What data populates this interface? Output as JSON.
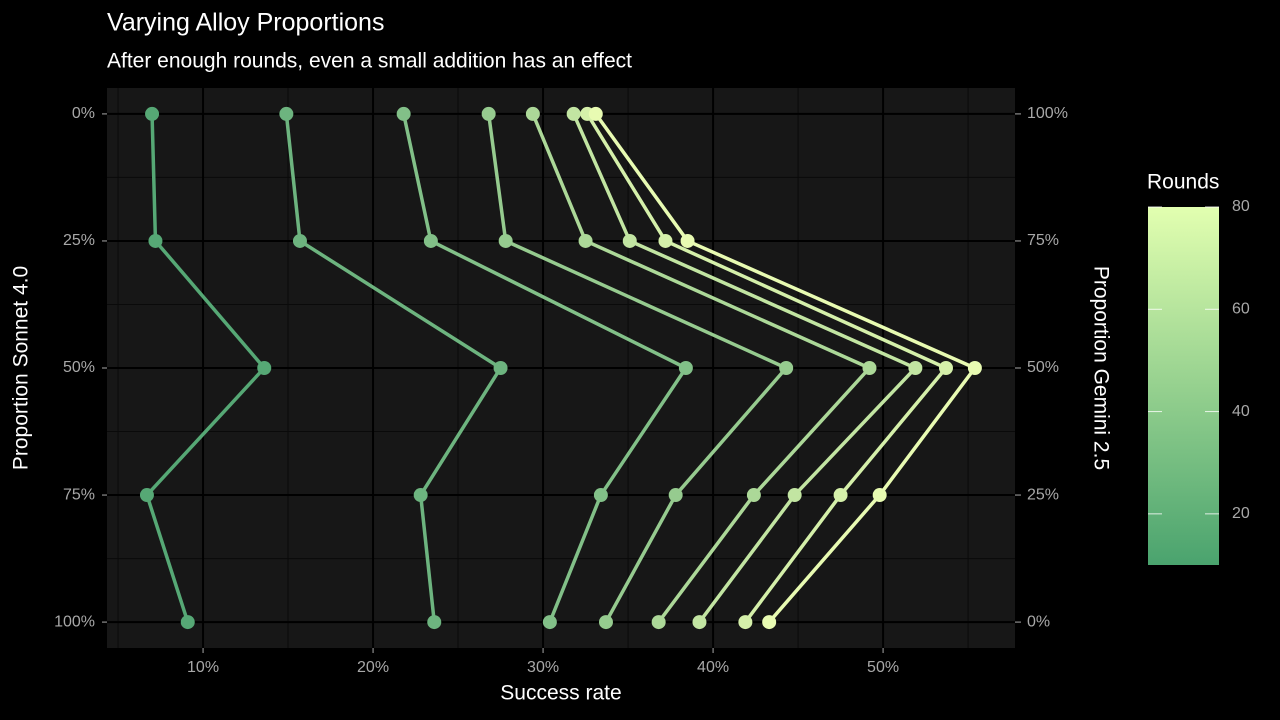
{
  "chart_data": {
    "type": "line",
    "title": "Varying Alloy Proportions",
    "subtitle": "After enough rounds, even a small addition has an effect",
    "x_label": "Success rate",
    "y_label": "Proportion Sonnet 4.0",
    "y2_label": "Proportion Gemini 2.5",
    "y": [
      0,
      25,
      50,
      75,
      100
    ],
    "series": [
      {
        "color": "#56a875",
        "values": [
          7.0,
          7.2,
          13.6,
          6.7,
          9.1
        ]
      },
      {
        "color": "#6db47f",
        "values": [
          14.9,
          15.7,
          27.5,
          22.8,
          23.6
        ]
      },
      {
        "color": "#82c088",
        "values": [
          21.8,
          23.4,
          38.4,
          33.4,
          30.4
        ]
      },
      {
        "color": "#96cb8f",
        "values": [
          26.8,
          27.8,
          44.3,
          37.8,
          33.7
        ]
      },
      {
        "color": "#acd898",
        "values": [
          29.4,
          32.5,
          49.2,
          42.4,
          36.8
        ]
      },
      {
        "color": "#c2e5a2",
        "values": [
          31.8,
          35.1,
          51.9,
          44.8,
          39.2
        ]
      },
      {
        "color": "#d5f0aa",
        "values": [
          32.6,
          37.2,
          53.7,
          47.5,
          41.9
        ]
      },
      {
        "color": "#e8fbb2",
        "values": [
          33.1,
          38.5,
          55.4,
          49.8,
          43.3
        ]
      }
    ],
    "xlim": [
      4.35,
      57.76
    ],
    "xticks": [
      {
        "value": 10,
        "label": "10%"
      },
      {
        "value": 20,
        "label": "20%"
      },
      {
        "value": 30,
        "label": "30%"
      },
      {
        "value": 40,
        "label": "40%"
      },
      {
        "value": 50,
        "label": "50%"
      }
    ],
    "ylim": [
      105.1,
      -5.1
    ],
    "yticks": [
      {
        "value": 0,
        "label": "0%"
      },
      {
        "value": 25,
        "label": "25%"
      },
      {
        "value": 50,
        "label": "50%"
      },
      {
        "value": 75,
        "label": "75%"
      },
      {
        "value": 100,
        "label": "100%"
      }
    ],
    "y2lim": [
      -5.1,
      105.1
    ],
    "y2ticks": [
      {
        "value": 100,
        "label": "100%"
      },
      {
        "value": 75,
        "label": "75%"
      },
      {
        "value": 50,
        "label": "50%"
      },
      {
        "value": 25,
        "label": "25%"
      },
      {
        "value": 0,
        "label": "0%"
      }
    ],
    "grid": true,
    "colorbar": {
      "title": "Rounds",
      "lim": [
        10,
        80
      ],
      "ticks": [
        20,
        40,
        60,
        80
      ],
      "colors": [
        "#4aa36e",
        "#e2ffb0"
      ]
    }
  }
}
